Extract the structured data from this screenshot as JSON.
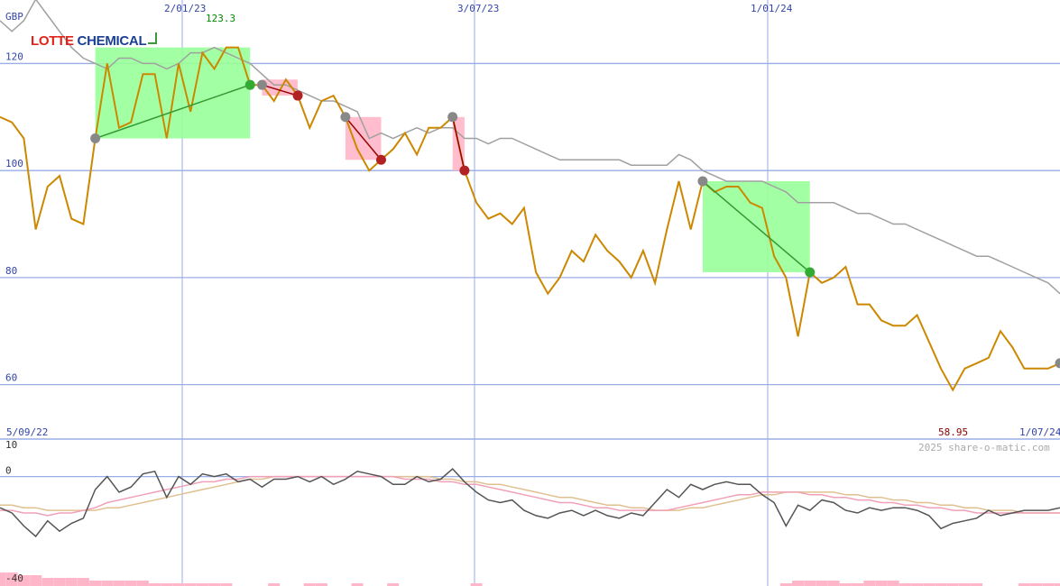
{
  "logo": {
    "part1": "LOTTE",
    "part2": "CHEMICAL"
  },
  "chart_data": {
    "type": "line",
    "currency_label": "GBP",
    "date_range": {
      "start": "5/09/22",
      "end": "1/07/24"
    },
    "date_ticks": [
      "2/01/23",
      "3/07/23",
      "1/01/24"
    ],
    "y_ticks": [
      60,
      80,
      100,
      120
    ],
    "ylim": [
      50,
      129
    ],
    "high_label": "123.3",
    "low_label": "58.95",
    "watermark": "2025 share-o-matic.com",
    "grid": true,
    "colors": {
      "price": "#cc8800",
      "moving_average": "#a0a0a0",
      "grid": "#9aaee6",
      "buy_fill": "#99ff99",
      "sell_fill": "#ffb6c8",
      "buy_line": "#339933",
      "sell_line": "#990000"
    },
    "series": [
      {
        "name": "price",
        "values": [
          110,
          109,
          106,
          89,
          97,
          99,
          91,
          90,
          106,
          120,
          108,
          109,
          118,
          118,
          106,
          120,
          111,
          122,
          119,
          123,
          123,
          116,
          116,
          113,
          117,
          114,
          108,
          113,
          114,
          110,
          104,
          100,
          102,
          104,
          107,
          103,
          108,
          108,
          110,
          100,
          94,
          91,
          92,
          90,
          93,
          81,
          77,
          80,
          85,
          83,
          88,
          85,
          83,
          80,
          85,
          79,
          89,
          98,
          89,
          98,
          96,
          97,
          97,
          94,
          93,
          84,
          80,
          69,
          81,
          79,
          80,
          82,
          75,
          75,
          72,
          71,
          71,
          73,
          68,
          63,
          59,
          63,
          64,
          65,
          70,
          67,
          63,
          63,
          63,
          64
        ]
      },
      {
        "name": "moving_average",
        "values": [
          128,
          126,
          128,
          132,
          129,
          126,
          123,
          121,
          120,
          119,
          121,
          121,
          120,
          120,
          119,
          120,
          122,
          122,
          123,
          122,
          121,
          120,
          118,
          116,
          116,
          115,
          114,
          113,
          113,
          112,
          111,
          106,
          107,
          106,
          107,
          108,
          107,
          108,
          108,
          106,
          106,
          105,
          106,
          106,
          105,
          104,
          103,
          102,
          102,
          102,
          102,
          102,
          102,
          101,
          101,
          101,
          101,
          103,
          102,
          100,
          99,
          98,
          98,
          98,
          98,
          97,
          96,
          94,
          94,
          94,
          94,
          93,
          92,
          92,
          91,
          90,
          90,
          89,
          88,
          87,
          86,
          85,
          84,
          84,
          83,
          82,
          81,
          80,
          79,
          77
        ]
      }
    ],
    "trade_markers": [
      {
        "type": "buy",
        "from": 8,
        "to": 21
      },
      {
        "type": "sell",
        "from": 22,
        "to": 25
      },
      {
        "type": "sell",
        "from": 29,
        "to": 32
      },
      {
        "type": "sell",
        "from": 38,
        "to": 39
      },
      {
        "type": "buy",
        "from": 59,
        "to": 68
      }
    ],
    "indicator": {
      "y_ticks": [
        10,
        0,
        -40
      ],
      "ylim": [
        -40,
        12
      ],
      "oscillator": [
        -12,
        -14,
        -19,
        -23,
        -17,
        -21,
        -18,
        -16,
        -5,
        0,
        -6,
        -4,
        1,
        2,
        -8,
        0,
        -3,
        1,
        0,
        1,
        -2,
        -1,
        -4,
        -1,
        -1,
        0,
        -2,
        0,
        -3,
        -1,
        2,
        1,
        0,
        -3,
        -3,
        0,
        -2,
        -1,
        3,
        -2,
        -6,
        -9,
        -10,
        -9,
        -13,
        -15,
        -16,
        -14,
        -13,
        -15,
        -13,
        -15,
        -16,
        -14,
        -15,
        -10,
        -5,
        -8,
        -3,
        -5,
        -3,
        -2,
        -3,
        -3,
        -7,
        -10,
        -19,
        -11,
        -13,
        -9,
        -10,
        -13,
        -14,
        -12,
        -13,
        -12,
        -12,
        -13,
        -15,
        -20,
        -18,
        -17,
        -16,
        -13,
        -15,
        -14,
        -13,
        -13,
        -13,
        -12
      ],
      "signal_fast": [
        -13,
        -13,
        -14,
        -14,
        -15,
        -14,
        -14,
        -13,
        -12,
        -10,
        -9,
        -8,
        -7,
        -6,
        -5,
        -4,
        -3,
        -2,
        -2,
        -1,
        -1,
        0,
        0,
        0,
        0,
        0,
        0,
        0,
        0,
        0,
        0,
        0,
        0,
        0,
        -1,
        -1,
        -1,
        -2,
        -2,
        -3,
        -3,
        -4,
        -5,
        -6,
        -7,
        -8,
        -9,
        -10,
        -10,
        -11,
        -12,
        -12,
        -13,
        -13,
        -13,
        -13,
        -13,
        -12,
        -11,
        -10,
        -9,
        -8,
        -7,
        -7,
        -6,
        -6,
        -6,
        -6,
        -7,
        -7,
        -8,
        -8,
        -9,
        -9,
        -10,
        -10,
        -11,
        -11,
        -12,
        -12,
        -13,
        -13,
        -14,
        -14,
        -14,
        -14,
        -14,
        -14,
        -14,
        -14
      ],
      "signal_slow": [
        -11,
        -11,
        -12,
        -12,
        -13,
        -13,
        -13,
        -13,
        -13,
        -12,
        -12,
        -11,
        -10,
        -9,
        -8,
        -7,
        -6,
        -5,
        -4,
        -3,
        -2,
        -1,
        -1,
        0,
        0,
        0,
        0,
        0,
        0,
        0,
        0,
        0,
        0,
        0,
        0,
        0,
        0,
        -1,
        -1,
        -2,
        -2,
        -3,
        -3,
        -4,
        -5,
        -6,
        -7,
        -8,
        -8,
        -9,
        -10,
        -11,
        -11,
        -12,
        -12,
        -13,
        -13,
        -13,
        -12,
        -12,
        -11,
        -10,
        -9,
        -8,
        -7,
        -7,
        -6,
        -6,
        -6,
        -6,
        -6,
        -7,
        -7,
        -8,
        -8,
        -9,
        -9,
        -10,
        -10,
        -11,
        -11,
        -12,
        -12,
        -13,
        -13,
        -13,
        -14,
        -14,
        -14,
        -14
      ],
      "volume": [
        5,
        5,
        4,
        4,
        3,
        3,
        3,
        3,
        2,
        2,
        2,
        2,
        2,
        1,
        1,
        1,
        1,
        1,
        1,
        1,
        0,
        0,
        0,
        1,
        0,
        0,
        1,
        1,
        0,
        0,
        1,
        0,
        0,
        1,
        0,
        0,
        0,
        0,
        0,
        0,
        1,
        0,
        0,
        0,
        0,
        0,
        0,
        0,
        0,
        0,
        0,
        0,
        0,
        0,
        0,
        0,
        0,
        0,
        0,
        0,
        0,
        0,
        0,
        0,
        0,
        0,
        1,
        2,
        2,
        2,
        2,
        1,
        1,
        2,
        2,
        2,
        1,
        1,
        1,
        1,
        1,
        1,
        1,
        0,
        0,
        0,
        1,
        1,
        1,
        1
      ]
    }
  }
}
